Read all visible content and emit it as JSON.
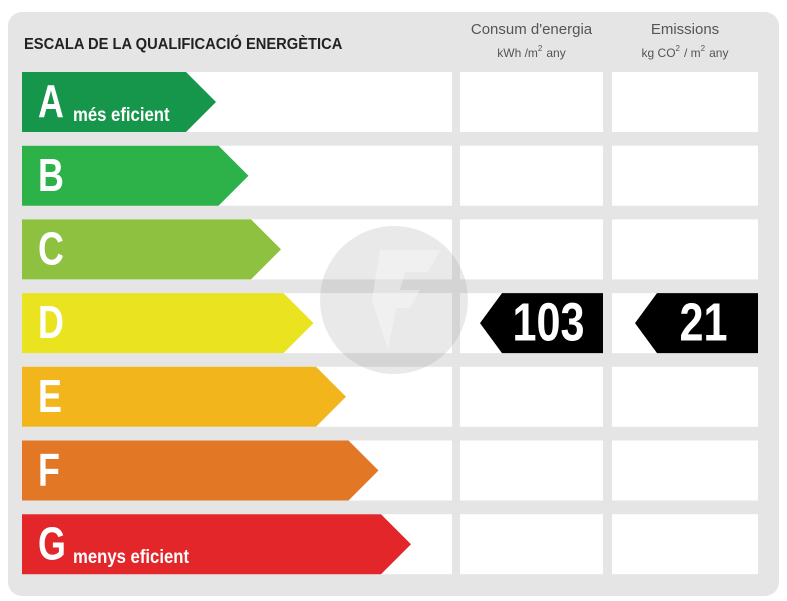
{
  "title": "ESCALA DE LA QUALIFICACIÓ ENERGÈTICA",
  "columns": [
    {
      "title": "Consum d'energia",
      "unit": [
        "kWh /m",
        "2",
        "any"
      ]
    },
    {
      "title": "Emissions",
      "unit": [
        "kg CO",
        "2",
        "/ m",
        "2",
        "any"
      ]
    }
  ],
  "rows": [
    {
      "grade": "A",
      "note": "més eficient",
      "color": "#16964a"
    },
    {
      "grade": "B",
      "color": "#2db24a"
    },
    {
      "grade": "C",
      "color": "#8dc13f"
    },
    {
      "grade": "D",
      "color": "#e9e41f",
      "consumption": 103,
      "emissions": 21
    },
    {
      "grade": "E",
      "color": "#f2b51c"
    },
    {
      "grade": "F",
      "color": "#e27826"
    },
    {
      "grade": "G",
      "note": "menys eficient",
      "color": "#e3262a"
    }
  ]
}
